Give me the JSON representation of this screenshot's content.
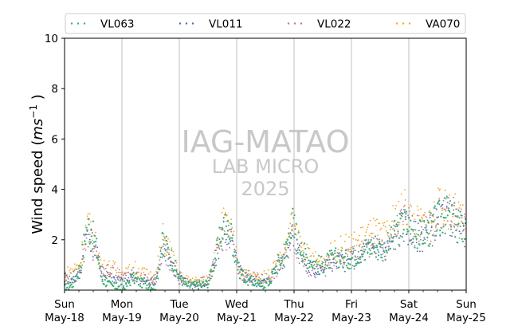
{
  "chart_data": {
    "type": "scatter",
    "ylabel_text": "Wind speed (",
    "ylabel_unit_base": "ms",
    "ylabel_unit_exp": "−1",
    "ylabel_close": ")",
    "ylim": [
      0,
      10
    ],
    "yticks": [
      2,
      4,
      6,
      8,
      10
    ],
    "x_start": "2025-05-18",
    "x_end": "2025-05-25",
    "xticks": [
      {
        "day": "Sun",
        "date": "May-18"
      },
      {
        "day": "Mon",
        "date": "May-19"
      },
      {
        "day": "Tue",
        "date": "May-20"
      },
      {
        "day": "Wed",
        "date": "May-21"
      },
      {
        "day": "Thu",
        "date": "May-22"
      },
      {
        "day": "Fri",
        "date": "May-23"
      },
      {
        "day": "Sat",
        "date": "May-24"
      },
      {
        "day": "Sun",
        "date": "May-25"
      }
    ],
    "vertical_grid": true,
    "legend_position": "top",
    "watermark": [
      "IAG-MATAO",
      "LAB MICRO",
      "2025"
    ],
    "series": [
      {
        "name": "VL063",
        "color": "#3cb371",
        "values": [
          0.1,
          0.2,
          0.9,
          2.6,
          2.0,
          0.4,
          0.2,
          0.1,
          0.1,
          0.5,
          0.3,
          0.2,
          0.1,
          2.0,
          1.4,
          0.6,
          0.2,
          0.2,
          0.2,
          0.3,
          1.4,
          2.6,
          2.2,
          0.8,
          0.4,
          0.3,
          0.2,
          0.3,
          1.0,
          1.4,
          2.8,
          1.8,
          1.3,
          1.1,
          1.0,
          1.2,
          1.3,
          1.2,
          1.3,
          1.5,
          1.7,
          1.8,
          1.6,
          1.9,
          2.4,
          2.7,
          2.3,
          2.2,
          2.3,
          2.7,
          3.0,
          2.9,
          2.6,
          2.3
        ]
      },
      {
        "name": "VL011",
        "color": "#4a6fa5",
        "values": [
          0.5,
          0.4,
          0.6,
          2.4,
          1.7,
          0.6,
          0.5,
          0.4,
          0.3,
          0.6,
          0.4,
          0.3,
          0.3,
          1.8,
          1.2,
          0.5,
          0.3,
          0.2,
          0.2,
          0.3,
          1.3,
          2.4,
          2.0,
          0.8,
          0.5,
          0.4,
          0.3,
          0.4,
          0.9,
          1.3,
          2.4,
          1.6,
          1.0,
          0.8,
          0.9,
          1.1,
          1.2,
          1.1,
          1.2,
          1.4,
          1.6,
          1.7,
          1.5,
          1.8,
          2.3,
          2.6,
          2.2,
          2.1,
          2.2,
          2.6,
          2.9,
          2.8,
          2.5,
          2.2
        ]
      },
      {
        "name": "VL022",
        "color": "#b07aa1",
        "values": [
          0.4,
          0.5,
          0.7,
          2.3,
          1.5,
          0.7,
          0.8,
          0.6,
          0.5,
          0.7,
          0.5,
          0.4,
          0.4,
          1.7,
          1.1,
          0.4,
          0.3,
          0.3,
          0.3,
          0.4,
          1.2,
          2.3,
          1.9,
          0.7,
          0.6,
          0.5,
          0.4,
          0.5,
          0.8,
          1.2,
          2.2,
          1.5,
          0.9,
          0.7,
          0.8,
          1.0,
          1.2,
          1.2,
          1.3,
          1.5,
          1.7,
          1.8,
          1.6,
          1.9,
          2.5,
          2.8,
          2.4,
          2.3,
          2.4,
          2.8,
          3.1,
          3.0,
          2.7,
          2.4
        ]
      },
      {
        "name": "VA070",
        "color": "#f5a623",
        "values": [
          0.6,
          0.8,
          1.0,
          2.7,
          1.9,
          0.9,
          0.9,
          0.8,
          0.6,
          0.9,
          0.7,
          0.6,
          0.5,
          2.1,
          1.5,
          0.6,
          0.4,
          0.4,
          0.3,
          0.5,
          1.5,
          2.7,
          2.3,
          0.9,
          0.6,
          0.5,
          0.5,
          0.6,
          1.1,
          1.5,
          2.6,
          1.9,
          1.4,
          1.2,
          1.1,
          1.4,
          1.6,
          1.7,
          1.8,
          2.0,
          2.2,
          2.3,
          2.1,
          2.5,
          3.0,
          3.3,
          2.8,
          2.6,
          2.7,
          3.1,
          3.4,
          3.2,
          2.9,
          2.5
        ]
      }
    ]
  }
}
